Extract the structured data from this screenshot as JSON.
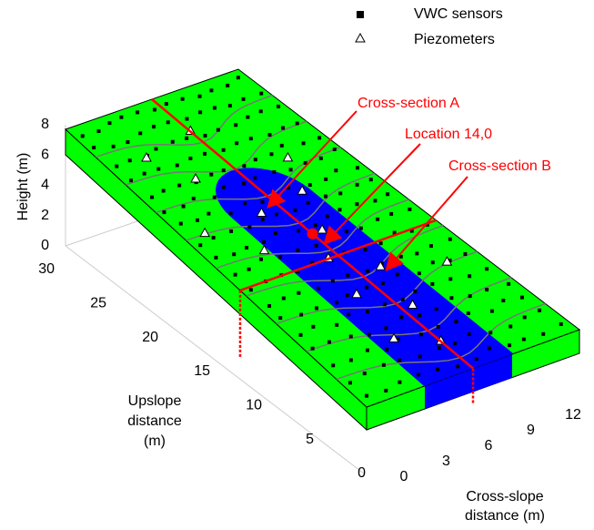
{
  "legend": [
    {
      "label": "VWC sensors"
    },
    {
      "label": "Piezometers"
    }
  ],
  "annotations": [
    "Cross-section A",
    "Location 14,0",
    "Cross-section B"
  ],
  "axes": {
    "height": {
      "label": "Height (m)",
      "ticks": [
        0,
        2,
        4,
        6,
        8
      ]
    },
    "upslope": {
      "label": [
        "Upslope",
        "distance",
        "(m)"
      ],
      "ticks": [
        0,
        5,
        10,
        15,
        20,
        25,
        30
      ]
    },
    "cross_slope": {
      "label": [
        "Cross-slope",
        "distance (m)"
      ],
      "ticks": [
        0,
        3,
        6,
        9,
        12
      ]
    }
  }
}
